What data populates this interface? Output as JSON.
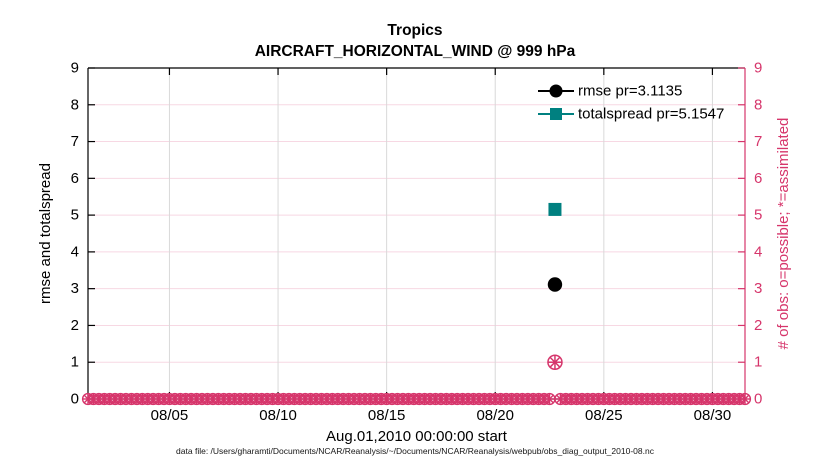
{
  "window": {
    "title_line1": "Tropics",
    "title_line2": "AIRCRAFT_HORIZONTAL_WIND @ 999 hPa",
    "caption": "data file: /Users/gharamti/Documents/NCAR/Reanalysis/~/Documents/NCAR/Reanalysis/webpub/obs_diag_output_2010-08.nc"
  },
  "chart_data": {
    "type": "scatter",
    "title": "Tropics",
    "subtitle": "AIRCRAFT_HORIZONTAL_WIND @ 999 hPa",
    "xlabel": "Aug.01,2010 00:00:00 start",
    "ylabel_left": "rmse and totalspread",
    "ylabel_right": "# of obs: o=possible; *=assimilated",
    "ylim": [
      0,
      9
    ],
    "yticks": [
      0,
      1,
      2,
      3,
      4,
      5,
      6,
      7,
      8,
      9
    ],
    "xlim_days": [
      1.25,
      31.5
    ],
    "xticks": [
      {
        "day": 5,
        "label": "08/05"
      },
      {
        "day": 10,
        "label": "08/10"
      },
      {
        "day": 15,
        "label": "08/15"
      },
      {
        "day": 20,
        "label": "08/20"
      },
      {
        "day": 25,
        "label": "08/25"
      },
      {
        "day": 30,
        "label": "08/30"
      }
    ],
    "grid": {
      "horizontal": true,
      "vertical": true
    },
    "legend": {
      "position": "top-right-inside",
      "items": [
        {
          "label": "rmse pr=3.1135",
          "marker": "circle",
          "color": "#000000"
        },
        {
          "label": "totalspread pr=5.1547",
          "marker": "square",
          "color": "#008080"
        }
      ]
    },
    "series": [
      {
        "name": "rmse pr=3.1135",
        "marker": "circle",
        "color": "#000000",
        "points": [
          {
            "day": 22.75,
            "value": 3.1135
          }
        ]
      },
      {
        "name": "totalspread pr=5.1547",
        "marker": "square",
        "color": "#008080",
        "points": [
          {
            "day": 22.75,
            "value": 5.1547
          }
        ]
      },
      {
        "name": "obs count (o=possible, *=assimilated)",
        "marker": "circle-asterisk",
        "color": "#d6356b",
        "points": [
          {
            "day": 22.75,
            "value": 1
          }
        ],
        "zero_row": {
          "start_day": 1.25,
          "end_day": 31.5,
          "step_day": 0.25,
          "gap_day": 22.75,
          "value": 0
        }
      }
    ],
    "colors": {
      "axis_left": "#000000",
      "axis_right": "#d6356b",
      "obs_accent": "#d6356b",
      "totalspread": "#008080",
      "rmse": "#000000",
      "grid_horizontal": "#f7d8e3",
      "grid_vertical": "#d9d9d9",
      "background": "#ffffff"
    }
  }
}
